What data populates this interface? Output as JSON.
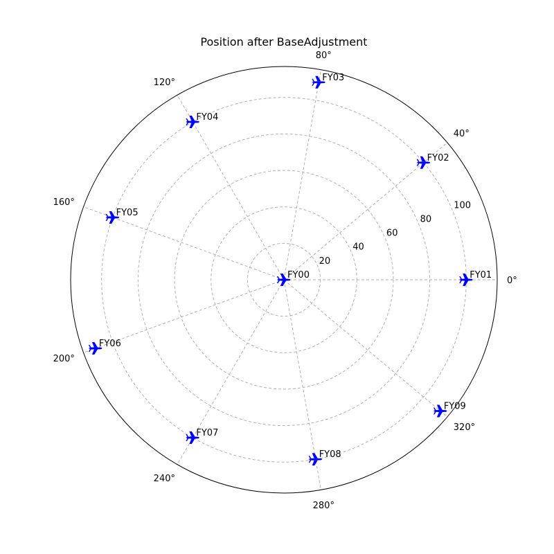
{
  "chart_data": {
    "type": "scatter",
    "projection": "polar",
    "title": "Position after BaseAdjustment",
    "marker": "airplane-icon",
    "marker_color": "#0000ff",
    "grid": true,
    "grid_color": "#b0b0b0",
    "rlim": [
      0,
      117
    ],
    "r_ticks": [
      20,
      40,
      60,
      80,
      100
    ],
    "r_tick_labels": [
      "20",
      "40",
      "60",
      "80",
      "100"
    ],
    "r_label_angle": 22.5,
    "theta_ticks": [
      0,
      40,
      80,
      120,
      160,
      200,
      240,
      280,
      320
    ],
    "theta_tick_labels": [
      "0°",
      "40°",
      "80°",
      "120°",
      "160°",
      "200°",
      "240°",
      "280°",
      "320°"
    ],
    "points": [
      {
        "label": "FY00",
        "theta": 0,
        "r": 0
      },
      {
        "label": "FY01",
        "theta": 0,
        "r": 100
      },
      {
        "label": "FY02",
        "theta": 40,
        "r": 100
      },
      {
        "label": "FY03",
        "theta": 80,
        "r": 110
      },
      {
        "label": "FY04",
        "theta": 120,
        "r": 100
      },
      {
        "label": "FY05",
        "theta": 160,
        "r": 100
      },
      {
        "label": "FY06",
        "theta": 200,
        "r": 110
      },
      {
        "label": "FY07",
        "theta": 240,
        "r": 100
      },
      {
        "label": "FY08",
        "theta": 280,
        "r": 100
      },
      {
        "label": "FY09",
        "theta": 320,
        "r": 112
      }
    ]
  }
}
